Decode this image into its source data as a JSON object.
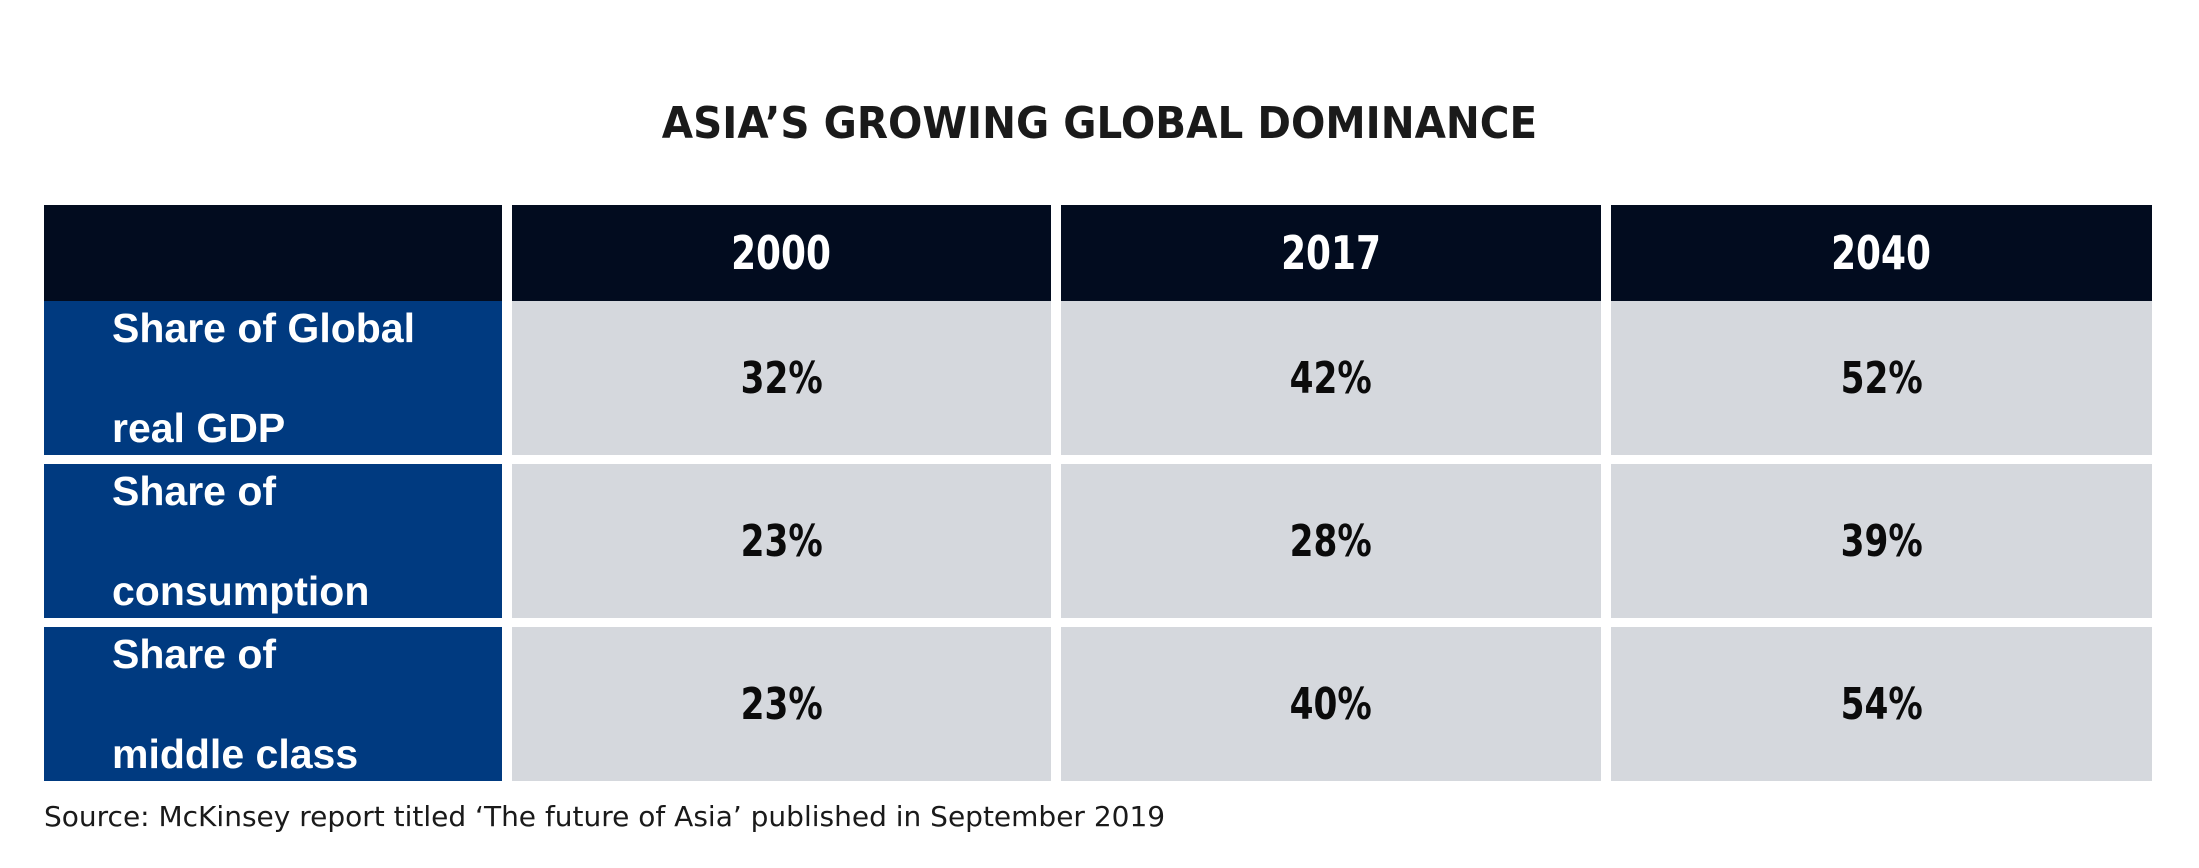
{
  "title": "ASIA’S GROWING GLOBAL DOMINANCE",
  "source": "Source: McKinsey report titled ‘The future of Asia’ published in September 2019",
  "colors": {
    "header_bg": "#020c1f",
    "row_header_bg": "#003a80",
    "cell_bg": "#d5d8dd"
  },
  "chart_data": {
    "type": "table",
    "title": "ASIA’S GROWING GLOBAL DOMINANCE",
    "columns": [
      "2000",
      "2017",
      "2040"
    ],
    "rows": [
      {
        "label": "Share of Global real GDP",
        "line1": "Share of Global",
        "line2": "real GDP",
        "values": [
          "32%",
          "42%",
          "52%"
        ]
      },
      {
        "label": "Share of consumption",
        "line1": "Share of",
        "line2": "consumption",
        "values": [
          "23%",
          "28%",
          "39%"
        ]
      },
      {
        "label": "Share of middle class",
        "line1": "Share of",
        "line2": "middle class",
        "values": [
          "23%",
          "40%",
          "54%"
        ]
      }
    ]
  }
}
